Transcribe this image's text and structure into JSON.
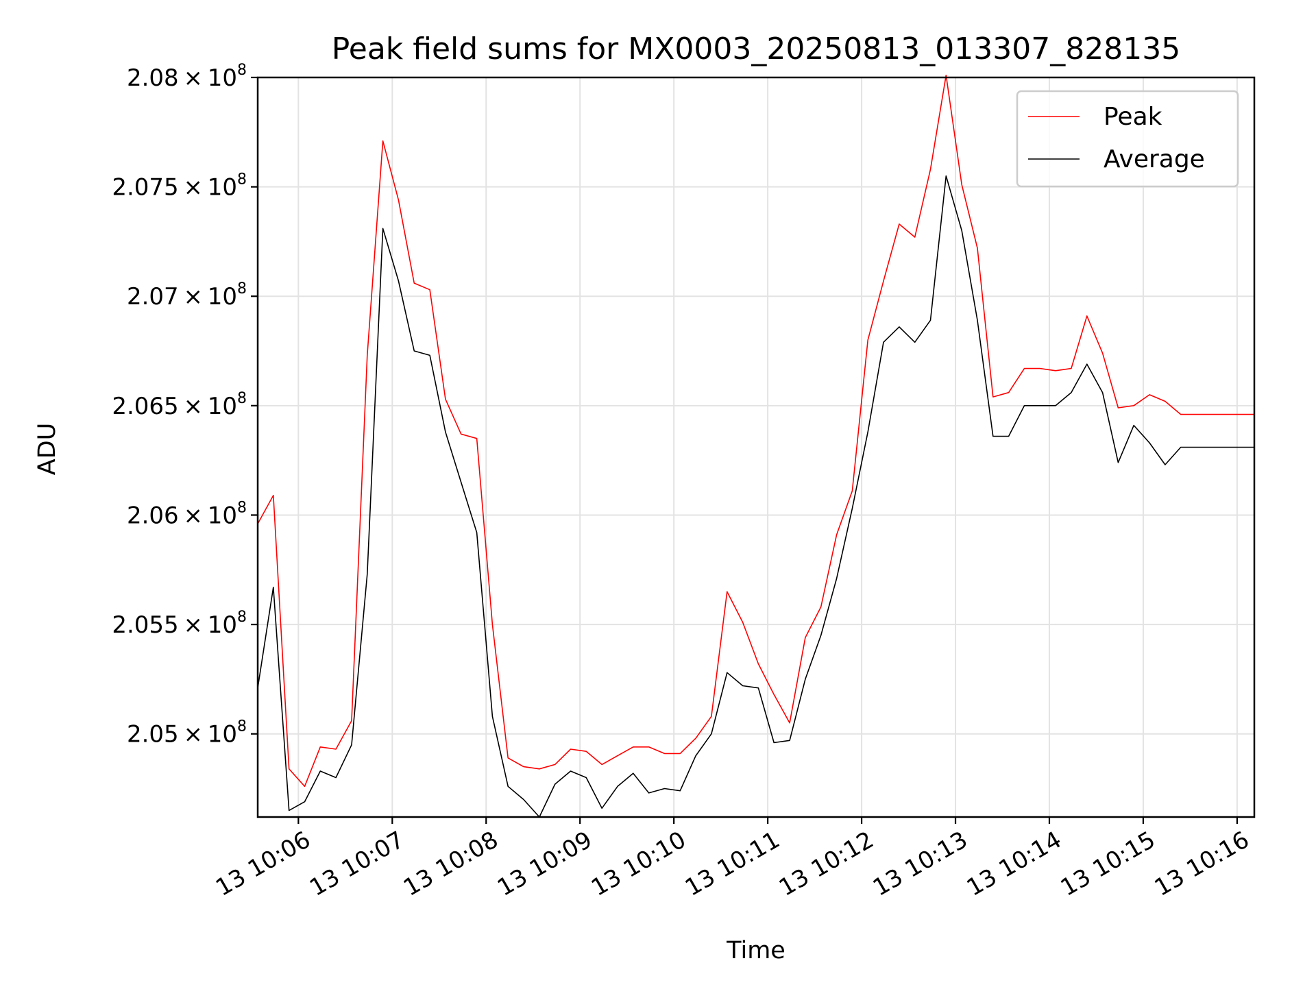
{
  "chart_data": {
    "type": "line",
    "title": "Peak field sums for MX0003_20250813_013307_828135",
    "xlabel": "Time",
    "ylabel": "ADU",
    "grid": true,
    "legend_position": "top-right",
    "xlim": [
      "13 10:05:34",
      "13 10:16:11"
    ],
    "ylim": [
      204620000,
      208000000
    ],
    "x_ticks": [
      "13 10:06",
      "13 10:07",
      "13 10:08",
      "13 10:09",
      "13 10:10",
      "13 10:11",
      "13 10:12",
      "13 10:13",
      "13 10:14",
      "13 10:15",
      "13 10:16"
    ],
    "y_ticks": [
      {
        "value": 205000000,
        "mantissa": "2.05",
        "exp": "8"
      },
      {
        "value": 205500000,
        "mantissa": "2.055",
        "exp": "8"
      },
      {
        "value": 206000000,
        "mantissa": "2.06",
        "exp": "8"
      },
      {
        "value": 206500000,
        "mantissa": "2.065",
        "exp": "8"
      },
      {
        "value": 207000000,
        "mantissa": "2.07",
        "exp": "8"
      },
      {
        "value": 207500000,
        "mantissa": "2.075",
        "exp": "8"
      },
      {
        "value": 208000000,
        "mantissa": "2.08",
        "exp": "8"
      }
    ],
    "x": [
      "13 10:05:34",
      "13 10:05:44",
      "13 10:05:54",
      "13 10:06:04",
      "13 10:06:14",
      "13 10:06:24",
      "13 10:06:34",
      "13 10:06:44",
      "13 10:06:54",
      "13 10:07:04",
      "13 10:07:14",
      "13 10:07:24",
      "13 10:07:34",
      "13 10:07:44",
      "13 10:07:54",
      "13 10:08:04",
      "13 10:08:14",
      "13 10:08:24",
      "13 10:08:34",
      "13 10:08:44",
      "13 10:08:54",
      "13 10:09:04",
      "13 10:09:14",
      "13 10:09:24",
      "13 10:09:34",
      "13 10:09:44",
      "13 10:09:54",
      "13 10:10:04",
      "13 10:10:14",
      "13 10:10:24",
      "13 10:10:34",
      "13 10:10:44",
      "13 10:10:54",
      "13 10:11:04",
      "13 10:11:14",
      "13 10:11:24",
      "13 10:11:34",
      "13 10:11:44",
      "13 10:11:54",
      "13 10:12:04",
      "13 10:12:14",
      "13 10:12:24",
      "13 10:12:34",
      "13 10:12:44",
      "13 10:12:54",
      "13 10:13:04",
      "13 10:13:14",
      "13 10:13:24",
      "13 10:13:34",
      "13 10:13:44",
      "13 10:13:54",
      "13 10:14:04",
      "13 10:14:14",
      "13 10:14:24",
      "13 10:14:34",
      "13 10:14:44",
      "13 10:14:54",
      "13 10:15:04",
      "13 10:15:14",
      "13 10:15:24",
      "13 10:15:34",
      "13 10:15:44",
      "13 10:15:54",
      "13 10:16:04",
      "13 10:16:11"
    ],
    "series": [
      {
        "name": "Peak",
        "color": "#ff0000",
        "values": [
          205960000,
          206090000,
          204840000,
          204760000,
          204940000,
          204930000,
          205060000,
          206730000,
          207710000,
          207440000,
          207060000,
          207030000,
          206530000,
          206370000,
          206350000,
          205500000,
          204890000,
          204850000,
          204840000,
          204860000,
          204930000,
          204920000,
          204860000,
          204900000,
          204940000,
          204940000,
          204910000,
          204910000,
          204980000,
          205080000,
          205650000,
          205510000,
          205320000,
          205180000,
          205050000,
          205440000,
          205580000,
          205910000,
          206110000,
          206800000,
          207070000,
          207330000,
          207270000,
          207580000,
          208010000,
          207510000,
          207220000,
          206540000,
          206560000,
          206670000,
          206670000,
          206660000,
          206670000,
          206910000,
          206740000,
          206490000,
          206500000,
          206550000,
          206520000,
          206460000,
          206460000,
          206460000,
          206460000,
          206460000,
          206460000
        ]
      },
      {
        "name": "Average",
        "color": "#000000",
        "values": [
          205210000,
          205670000,
          204650000,
          204690000,
          204830000,
          204800000,
          204950000,
          205730000,
          207310000,
          207070000,
          206750000,
          206730000,
          206380000,
          206150000,
          205920000,
          205080000,
          204760000,
          204700000,
          204620000,
          204770000,
          204830000,
          204800000,
          204660000,
          204760000,
          204820000,
          204730000,
          204750000,
          204740000,
          204900000,
          205000000,
          205280000,
          205220000,
          205210000,
          204960000,
          204970000,
          205250000,
          205450000,
          205710000,
          206030000,
          206380000,
          206790000,
          206860000,
          206790000,
          206890000,
          207550000,
          207300000,
          206890000,
          206360000,
          206360000,
          206500000,
          206500000,
          206500000,
          206560000,
          206690000,
          206560000,
          206240000,
          206410000,
          206330000,
          206230000,
          206310000,
          206310000,
          206310000,
          206310000,
          206310000,
          206310000
        ]
      }
    ]
  }
}
